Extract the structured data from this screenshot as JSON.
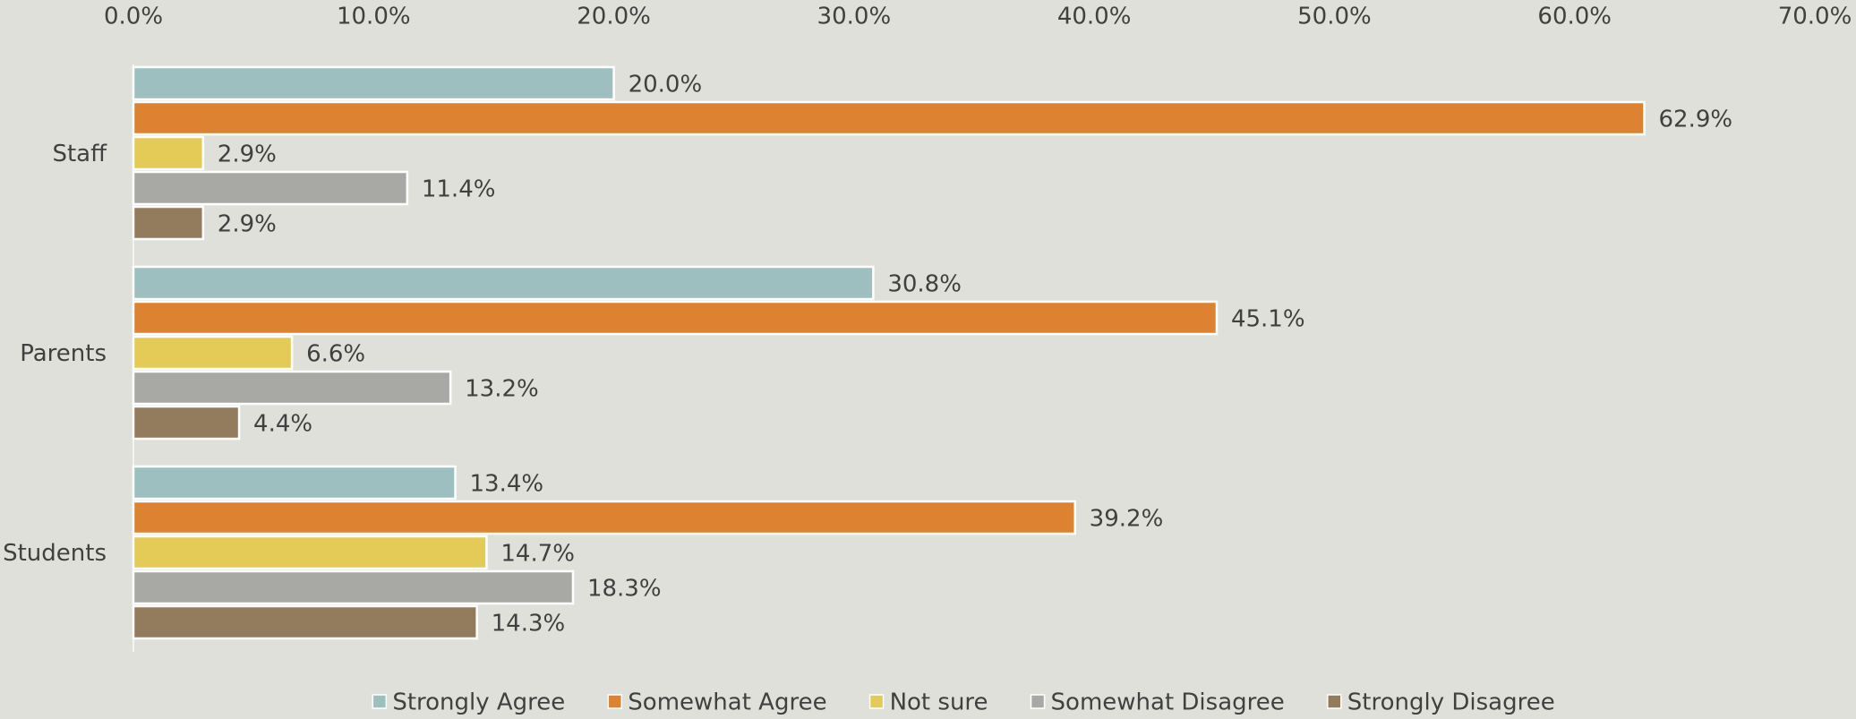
{
  "chart_data": {
    "type": "hbar",
    "categories": [
      "Staff",
      "Parents",
      "Students"
    ],
    "series": [
      {
        "name": "Strongly Agree",
        "color": "#9dbfbf",
        "values": [
          20.0,
          30.8,
          13.4
        ],
        "value_labels": [
          "20.0%",
          "30.8%",
          "13.4%"
        ]
      },
      {
        "name": "Somewhat Agree",
        "color": "#dc8230",
        "values": [
          62.9,
          45.1,
          39.2
        ],
        "value_labels": [
          "62.9%",
          "45.1%",
          "39.2%"
        ]
      },
      {
        "name": "Not sure",
        "color": "#e4cb58",
        "values": [
          2.9,
          6.6,
          14.7
        ],
        "value_labels": [
          "2.9%",
          "6.6%",
          "14.7%"
        ]
      },
      {
        "name": "Somewhat Disagree",
        "color": "#a8a8a4",
        "values": [
          11.4,
          13.2,
          18.3
        ],
        "value_labels": [
          "11.4%",
          "13.2%",
          "18.3%"
        ]
      },
      {
        "name": "Strongly Disagree",
        "color": "#937b5e",
        "values": [
          2.9,
          4.4,
          14.3
        ],
        "value_labels": [
          "2.9%",
          "4.4%",
          "14.3%"
        ]
      }
    ],
    "xlim": [
      0,
      70
    ],
    "xticks": [
      {
        "value": 0,
        "label": "0.0%"
      },
      {
        "value": 10,
        "label": "10.0%"
      },
      {
        "value": 20,
        "label": "20.0%"
      },
      {
        "value": 30,
        "label": "30.0%"
      },
      {
        "value": 40,
        "label": "40.0%"
      },
      {
        "value": 50,
        "label": "50.0%"
      },
      {
        "value": 60,
        "label": "60.0%"
      },
      {
        "value": 70,
        "label": "70.0%"
      }
    ],
    "grid": false,
    "legend": "bottom"
  }
}
